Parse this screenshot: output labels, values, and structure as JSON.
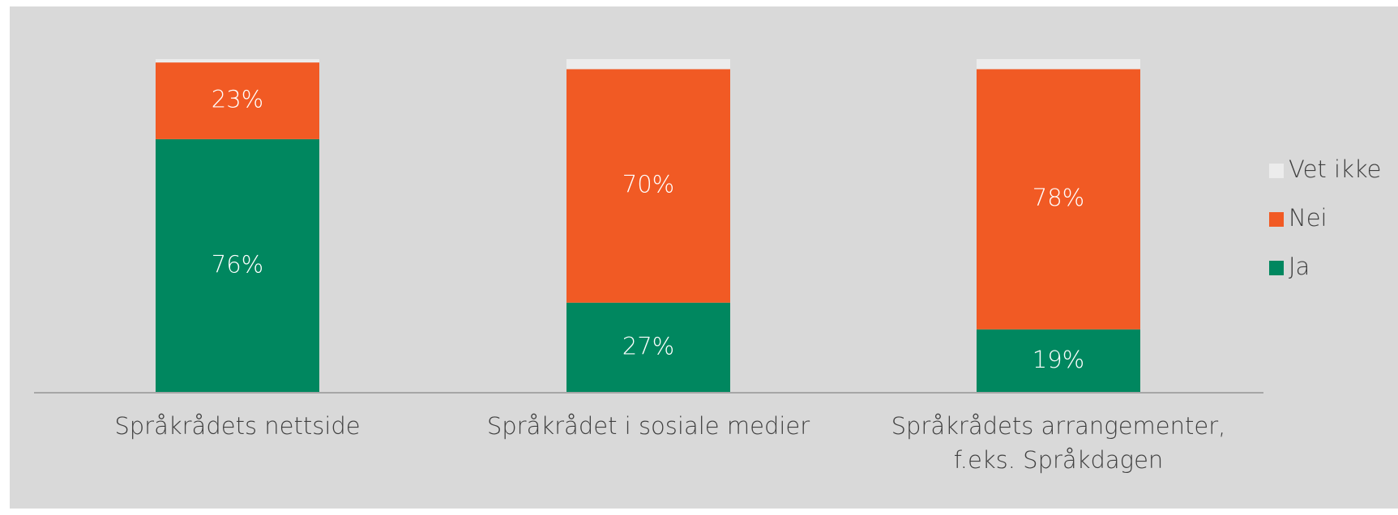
{
  "chart_data": {
    "type": "stacked_bar",
    "categories": [
      "Språkrådets nettside",
      "Språkrådet i sosiale medier",
      "Språkrådets arrangementer,\nf.eks. Språkdagen"
    ],
    "series": [
      {
        "name": "Ja",
        "color": "#00875f",
        "values": [
          76,
          27,
          19
        ],
        "value_labels": [
          "76%",
          "27%",
          "19%"
        ]
      },
      {
        "name": "Nei",
        "color": "#f15a24",
        "values": [
          23,
          70,
          78
        ],
        "value_labels": [
          "23%",
          "70%",
          "78%"
        ]
      },
      {
        "name": "Vet ikke",
        "color": "#ececec",
        "values": [
          1,
          3,
          3
        ]
      }
    ],
    "legend": "right"
  }
}
